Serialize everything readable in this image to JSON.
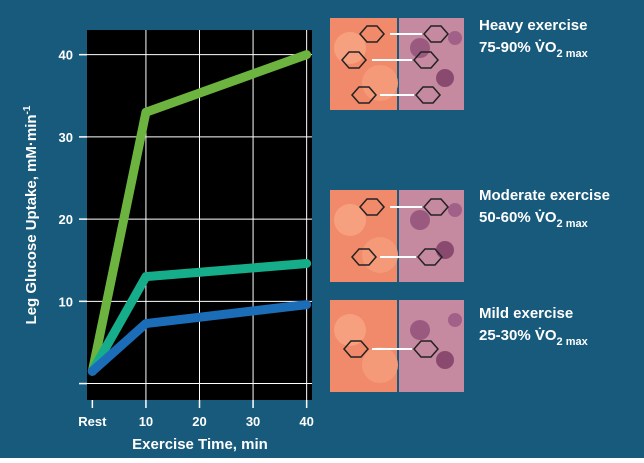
{
  "chart_data": {
    "type": "line",
    "xlabel": "Exercise Time, min",
    "ylabel": "Leg Glucose Uptake, mM·min",
    "ylabel_sup": "-1",
    "x": [
      0,
      10,
      40
    ],
    "xlim": [
      -1,
      41
    ],
    "xticks": [
      {
        "value": 0,
        "label": "Rest"
      },
      10,
      20,
      30,
      40
    ],
    "ylim": [
      -2,
      43
    ],
    "yticks": [
      {
        "value": 0,
        "label": null
      },
      10,
      20,
      30,
      40
    ],
    "grid": true,
    "series": [
      {
        "name": "Heavy exercise",
        "range": "75-90% V̇O",
        "subscript": "2 max",
        "color": "#6cb33f",
        "values": [
          1.5,
          33,
          40
        ]
      },
      {
        "name": "Moderate exercise",
        "range": "50-60% V̇O",
        "subscript": "2 max",
        "color": "#16ae8a",
        "values": [
          1.5,
          13,
          14.6
        ]
      },
      {
        "name": "Mild exercise",
        "range": "25-30% V̇O",
        "subscript": "2 max",
        "color": "#1b6db8",
        "values": [
          1.5,
          7.3,
          9.6
        ]
      }
    ]
  }
}
